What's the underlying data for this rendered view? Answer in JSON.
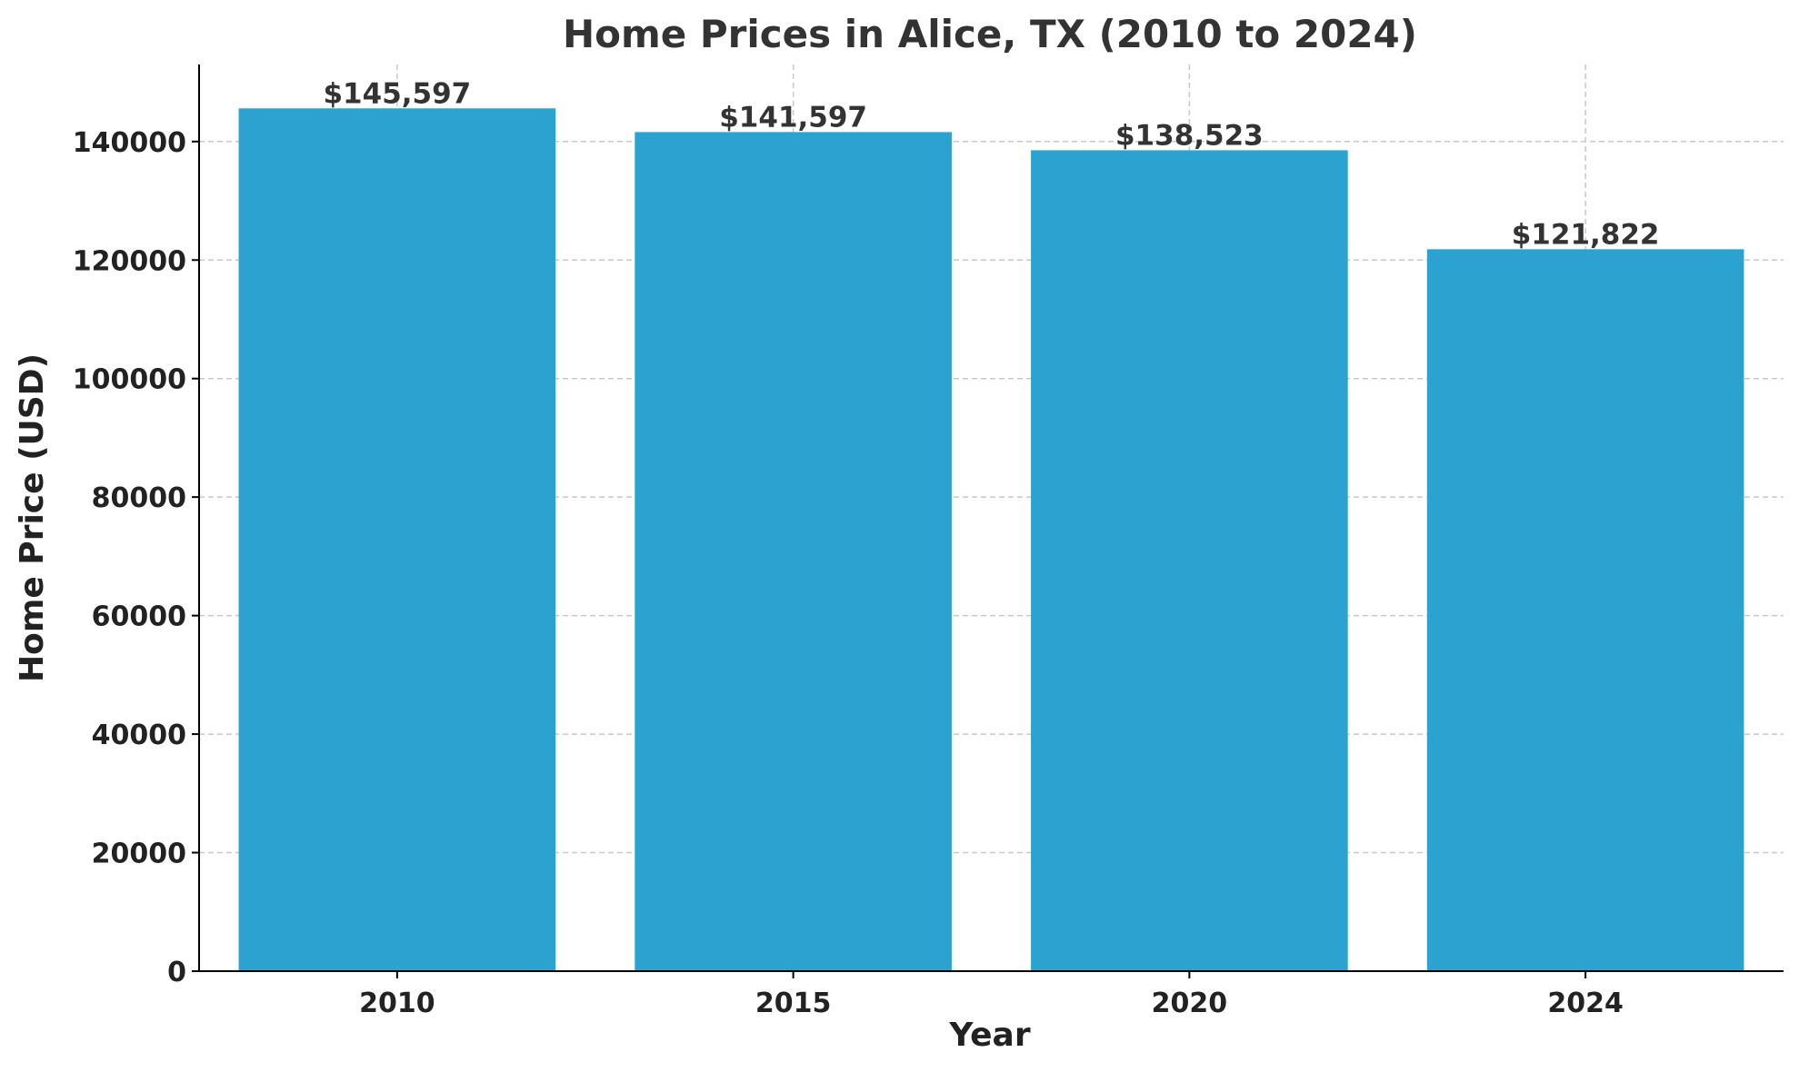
{
  "chart_data": {
    "type": "bar",
    "title": "Home Prices in Alice, TX (2010 to 2024)",
    "xlabel": "Year",
    "ylabel": "Home Price (USD)",
    "categories": [
      "2010",
      "2015",
      "2020",
      "2024"
    ],
    "values": [
      145597,
      141597,
      138523,
      121822
    ],
    "data_labels": [
      "$145,597",
      "$141,597",
      "$138,523",
      "$121,822"
    ],
    "yticks": [
      0,
      20000,
      40000,
      60000,
      80000,
      100000,
      120000,
      140000
    ],
    "ytick_labels": [
      "0",
      "20000",
      "40000",
      "60000",
      "80000",
      "100000",
      "120000",
      "140000"
    ],
    "ylim": [
      0,
      153000
    ],
    "grid": true,
    "bar_color": "#2ba2cf"
  }
}
